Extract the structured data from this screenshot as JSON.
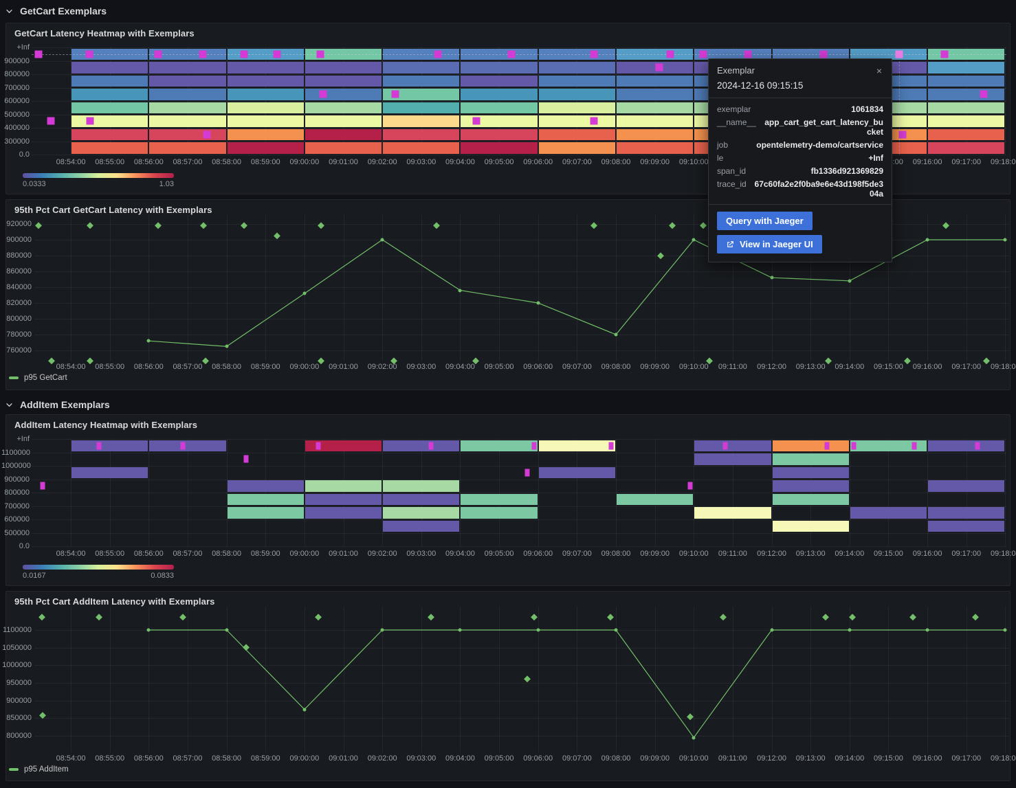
{
  "sections": [
    {
      "title": "GetCart Exemplars"
    },
    {
      "title": "AddItem Exemplars"
    }
  ],
  "x_ticks": [
    "08:54:00",
    "08:55:00",
    "08:56:00",
    "08:57:00",
    "08:58:00",
    "08:59:00",
    "09:00:00",
    "09:01:00",
    "09:02:00",
    "09:03:00",
    "09:04:00",
    "09:05:00",
    "09:06:00",
    "09:07:00",
    "09:08:00",
    "09:09:00",
    "09:10:00",
    "09:11:00",
    "09:12:00",
    "09:13:00",
    "09:14:00",
    "09:15:00",
    "09:16:00",
    "09:17:00",
    "09:18:00"
  ],
  "colors": {
    "accent_blue": "#3d71d9",
    "exemplar": "#d43bd4",
    "exemplar_selected": "#ea7de6",
    "series_green": "#73bf69",
    "panel_bg": "#181b1f",
    "page_bg": "#111217"
  },
  "palette": {
    "P1": "#6458a8",
    "I1": "#5a6db3",
    "B1": "#5480bd",
    "B2": "#4e7ab6",
    "B3": "#549dc7",
    "T1": "#4796b9",
    "T2": "#53aeae",
    "G1": "#74c7a4",
    "G2": "#a6d9a4",
    "AG": "#7cc8a3",
    "YG": "#d7ef9e",
    "Y": "#edf8a3",
    "CY": "#f6f8b8",
    "PY": "#fdda8b",
    "O": "#f5914e",
    "OR": "#e8614c",
    "R": "#d6455c",
    "DR": "#b52049"
  },
  "colorbar_gradient": [
    "#5e4fa2",
    "#3a7eb8",
    "#54aead",
    "#89d0a4",
    "#d7ef9b",
    "#fee08b",
    "#f8905a",
    "#d8434e",
    "#b11f4c"
  ],
  "chart_data": [
    {
      "type": "heatmap",
      "title": "GetCart Latency Heatmap with Exemplars",
      "y_ticks": [
        "+Inf",
        "900000",
        "800000",
        "700000",
        "600000",
        "500000",
        "400000",
        "300000",
        "0.0"
      ],
      "bucket_minutes": 2,
      "columns": [
        {
          "m": 1,
          "cells": [
            "B1",
            "P1",
            "B2",
            "T1",
            "G1",
            "Y",
            "R",
            "OR"
          ]
        },
        {
          "m": 3,
          "cells": [
            "B1",
            "P1",
            "P1",
            "B2",
            "G2",
            "Y",
            "R",
            "OR"
          ]
        },
        {
          "m": 5,
          "cells": [
            "B3",
            "P1",
            "P1",
            "T1",
            "YG",
            "Y",
            "O",
            "DR"
          ]
        },
        {
          "m": 7,
          "cells": [
            "G1",
            "P1",
            "P1",
            "B2",
            "G2",
            "Y",
            "DR",
            "OR"
          ]
        },
        {
          "m": 9,
          "cells": [
            "B1",
            "I1",
            "B2",
            "G1",
            "T2",
            "PY",
            "R",
            "OR"
          ]
        },
        {
          "m": 11,
          "cells": [
            "B1",
            "I1",
            "P1",
            "T1",
            "G1",
            "Y",
            "R",
            "DR"
          ]
        },
        {
          "m": 13,
          "cells": [
            "B1",
            "I1",
            "B2",
            "T1",
            "YG",
            "Y",
            "OR",
            "O"
          ]
        },
        {
          "m": 15,
          "cells": [
            "B3",
            "P1",
            "B2",
            "B2",
            "G2",
            "Y",
            "O",
            "OR"
          ]
        },
        {
          "m": 17,
          "cells": [
            "B1",
            "P1",
            "B2",
            "B2",
            "G2",
            "Y",
            "O",
            "OR"
          ]
        },
        {
          "m": 19,
          "cells": [
            "B1",
            "P1",
            "B2",
            "B2",
            "G2",
            "Y",
            "O",
            "R"
          ]
        },
        {
          "m": 21,
          "cells": [
            "B3",
            "P1",
            "B2",
            "B2",
            "G2",
            "Y",
            "O",
            "OR"
          ]
        },
        {
          "m": 23,
          "cells": [
            "G1",
            "B3",
            "B2",
            "B2",
            "G2",
            "Y",
            "OR",
            "R"
          ]
        }
      ],
      "exemplars": [
        {
          "m": 0.17,
          "row": 0
        },
        {
          "m": 1.48,
          "row": 0
        },
        {
          "m": 3.24,
          "row": 0
        },
        {
          "m": 4.39,
          "row": 0
        },
        {
          "m": 5.45,
          "row": 0
        },
        {
          "m": 6.3,
          "row": 0
        },
        {
          "m": 7.41,
          "row": 0
        },
        {
          "m": 10.42,
          "row": 0
        },
        {
          "m": 12.32,
          "row": 0
        },
        {
          "m": 14.43,
          "row": 0
        },
        {
          "m": 16.39,
          "row": 0
        },
        {
          "m": 17.25,
          "row": 0
        },
        {
          "m": 18.39,
          "row": 0
        },
        {
          "m": 20.33,
          "row": 0
        },
        {
          "m": 22.27,
          "row": 0,
          "highlight": true
        },
        {
          "m": 23.44,
          "row": 0
        },
        {
          "m": 16.12,
          "row": 1
        },
        {
          "m": 7.48,
          "row": 3
        },
        {
          "m": 9.34,
          "row": 3
        },
        {
          "m": 24.45,
          "row": 3
        },
        {
          "m": 0.49,
          "row": 5
        },
        {
          "m": 1.49,
          "row": 5
        },
        {
          "m": 11.42,
          "row": 5
        },
        {
          "m": 14.43,
          "row": 5
        },
        {
          "m": 4.5,
          "row": 6
        },
        {
          "m": 22.36,
          "row": 6
        }
      ],
      "crosshair": {
        "m": 22.27,
        "row": 0
      },
      "scale": {
        "min": "0.0333",
        "max": "1.03"
      }
    },
    {
      "type": "line",
      "title": "95th Pct Cart GetCart Latency with Exemplars",
      "legend": "p95 GetCart",
      "line_color": "#73bf69",
      "y_ticks": [
        920000,
        900000,
        880000,
        860000,
        840000,
        820000,
        800000,
        780000,
        760000
      ],
      "points": {
        "m": [
          3,
          5,
          7,
          9,
          11,
          13,
          15,
          17,
          19,
          21,
          23,
          25
        ],
        "v": [
          772000,
          765000,
          832000,
          900000,
          836000,
          820000,
          780000,
          900000,
          852000,
          848000,
          900000,
          900000
        ]
      },
      "exemplars": [
        {
          "m": 0.17,
          "v": 918000
        },
        {
          "m": 1.5,
          "v": 918000
        },
        {
          "m": 3.25,
          "v": 918000
        },
        {
          "m": 4.4,
          "v": 918000
        },
        {
          "m": 5.45,
          "v": 918000
        },
        {
          "m": 7.42,
          "v": 918000
        },
        {
          "m": 10.4,
          "v": 918000
        },
        {
          "m": 14.43,
          "v": 918000
        },
        {
          "m": 16.45,
          "v": 918000
        },
        {
          "m": 17.25,
          "v": 918000
        },
        {
          "m": 23.47,
          "v": 918000
        },
        {
          "m": 6.3,
          "v": 905000
        },
        {
          "m": 16.14,
          "v": 880000
        },
        {
          "m": 0.5,
          "v": 747000
        },
        {
          "m": 1.5,
          "v": 747000
        },
        {
          "m": 4.46,
          "v": 747000
        },
        {
          "m": 7.43,
          "v": 747000
        },
        {
          "m": 9.3,
          "v": 747000
        },
        {
          "m": 11.4,
          "v": 747000
        },
        {
          "m": 17.4,
          "v": 747000
        },
        {
          "m": 20.45,
          "v": 747000
        },
        {
          "m": 22.49,
          "v": 747000
        },
        {
          "m": 24.52,
          "v": 747000
        }
      ]
    },
    {
      "type": "heatmap",
      "title": "AddItem Latency Heatmap with Exemplars",
      "y_ticks": [
        "+Inf",
        "1100000",
        "1000000",
        "900000",
        "800000",
        "700000",
        "600000",
        "500000",
        "0.0"
      ],
      "bucket_minutes": 2,
      "columns": [
        {
          "m": 1,
          "cells": [
            "P1",
            null,
            "P1",
            null,
            null,
            null,
            null,
            null
          ]
        },
        {
          "m": 3,
          "cells": [
            "P1",
            null,
            null,
            null,
            null,
            null,
            null,
            null
          ]
        },
        {
          "m": 5,
          "cells": [
            null,
            null,
            null,
            "P1",
            "AG",
            "AG",
            null,
            null
          ]
        },
        {
          "m": 7,
          "cells": [
            "DR",
            null,
            null,
            "G2",
            "P1",
            "P1",
            null,
            null
          ]
        },
        {
          "m": 9,
          "cells": [
            "P1",
            null,
            null,
            "G2",
            "P1",
            "G2",
            "P1",
            null
          ]
        },
        {
          "m": 11,
          "cells": [
            "AG",
            null,
            null,
            null,
            "AG",
            "AG",
            null,
            null
          ]
        },
        {
          "m": 13,
          "cells": [
            "CY",
            null,
            "P1",
            null,
            null,
            null,
            null,
            null
          ]
        },
        {
          "m": 15,
          "cells": [
            null,
            null,
            null,
            null,
            "AG",
            null,
            null,
            null
          ]
        },
        {
          "m": 17,
          "cells": [
            "P1",
            "P1",
            null,
            null,
            null,
            "CY",
            null,
            null
          ]
        },
        {
          "m": 19,
          "cells": [
            "O",
            "AG",
            "P1",
            "P1",
            "AG",
            null,
            "CY",
            null
          ]
        },
        {
          "m": 21,
          "cells": [
            "AG",
            null,
            null,
            null,
            null,
            "P1",
            null,
            null
          ]
        },
        {
          "m": 23,
          "cells": [
            "P1",
            null,
            null,
            "P1",
            null,
            "P1",
            "P1",
            null
          ]
        }
      ],
      "exemplars": [
        {
          "m": 1.72,
          "row": 0
        },
        {
          "m": 3.88,
          "row": 0
        },
        {
          "m": 7.35,
          "row": 0
        },
        {
          "m": 10.25,
          "row": 0
        },
        {
          "m": 12.9,
          "row": 0
        },
        {
          "m": 14.88,
          "row": 0
        },
        {
          "m": 17.8,
          "row": 0
        },
        {
          "m": 20.42,
          "row": 0
        },
        {
          "m": 21.1,
          "row": 0
        },
        {
          "m": 22.67,
          "row": 0
        },
        {
          "m": 24.28,
          "row": 0
        },
        {
          "m": 5.5,
          "row": 1
        },
        {
          "m": 12.73,
          "row": 2
        },
        {
          "m": 0.28,
          "row": 3
        },
        {
          "m": 16.9,
          "row": 3
        }
      ],
      "scale": {
        "min": "0.0167",
        "max": "0.0833"
      }
    },
    {
      "type": "line",
      "title": "95th Pct Cart AddItem Latency with Exemplars",
      "legend": "p95 AddItem",
      "line_color": "#73bf69",
      "y_ticks": [
        1100000,
        1050000,
        1000000,
        950000,
        900000,
        850000,
        800000
      ],
      "points": {
        "m": [
          3,
          5,
          7,
          9,
          11,
          13,
          15,
          17,
          19,
          21,
          23,
          25
        ],
        "v": [
          1100000,
          1100000,
          875000,
          1100000,
          1100000,
          1100000,
          1100000,
          795000,
          1100000,
          1100000,
          1100000,
          1100000
        ]
      },
      "exemplars": [
        {
          "m": 0.25,
          "v": 1137000
        },
        {
          "m": 1.72,
          "v": 1137000
        },
        {
          "m": 3.88,
          "v": 1137000
        },
        {
          "m": 7.35,
          "v": 1137000
        },
        {
          "m": 10.25,
          "v": 1137000
        },
        {
          "m": 12.9,
          "v": 1137000
        },
        {
          "m": 14.85,
          "v": 1137000
        },
        {
          "m": 17.75,
          "v": 1137000
        },
        {
          "m": 20.38,
          "v": 1137000
        },
        {
          "m": 21.08,
          "v": 1137000
        },
        {
          "m": 22.63,
          "v": 1137000
        },
        {
          "m": 24.23,
          "v": 1137000
        },
        {
          "m": 0.28,
          "v": 858000
        },
        {
          "m": 5.5,
          "v": 1052000
        },
        {
          "m": 12.73,
          "v": 962000
        },
        {
          "m": 16.9,
          "v": 855000
        }
      ]
    }
  ],
  "tooltip": {
    "title": "Exemplar",
    "close_label": "×",
    "timestamp": "2024-12-16 09:15:15",
    "fields": [
      {
        "key": "exemplar",
        "value": "1061834"
      },
      {
        "key": "__name__",
        "value": "app_cart_get_cart_latency_bucket"
      },
      {
        "key": "job",
        "value": "opentelemetry-demo/cartservice"
      },
      {
        "key": "le",
        "value": "+Inf"
      },
      {
        "key": "span_id",
        "value": "fb1336d921369829"
      },
      {
        "key": "trace_id",
        "value": "67c60fa2e2f0ba9e6e43d198f5de304a"
      }
    ],
    "buttons": [
      {
        "label": "Query with Jaeger",
        "icon": null
      },
      {
        "label": "View in Jaeger UI",
        "icon": "external-link"
      }
    ]
  }
}
